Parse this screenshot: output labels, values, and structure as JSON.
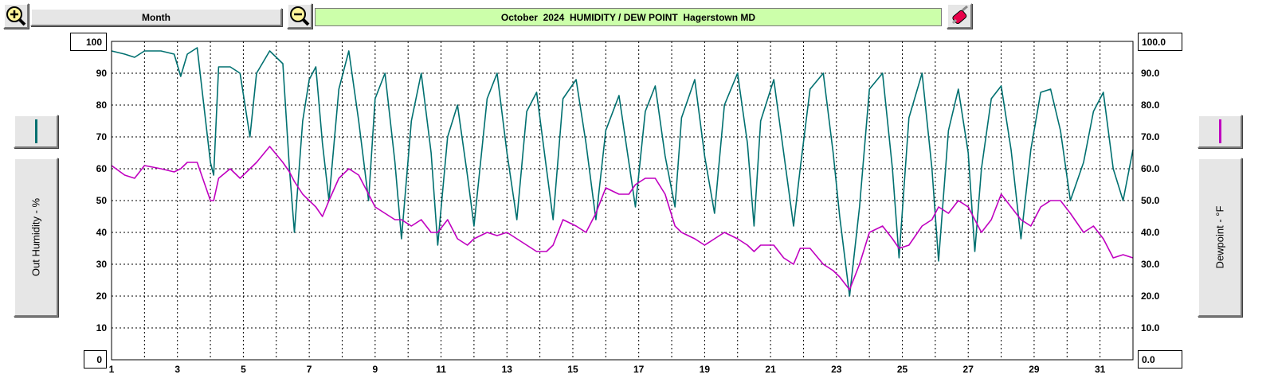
{
  "toolbar": {
    "zoom_in_icon": "zoom-in-icon",
    "zoom_out_icon": "zoom-out-icon",
    "period_label": "Month",
    "settings_icon": "paint-brush-icon"
  },
  "title": "October  2024  HUMIDITY / DEW POINT  Hagerstown MD",
  "left_axis": {
    "label": "Out Humidity - %",
    "top_value": "100",
    "bottom_value": "0",
    "color": "#007070"
  },
  "right_axis": {
    "label": "Dewpoint - °F",
    "top_value": "100.0",
    "bottom_value": "0.0",
    "color": "#c000c0"
  },
  "chart_data": {
    "type": "line",
    "title": "October  2024  HUMIDITY / DEW POINT  Hagerstown MD",
    "xlabel": "",
    "ylabel_left": "Out Humidity - %",
    "ylabel_right": "Dewpoint - °F",
    "xlim": [
      1,
      32
    ],
    "ylim_left": [
      0,
      100
    ],
    "ylim_right": [
      0,
      100
    ],
    "x_ticks": [
      1,
      3,
      5,
      7,
      9,
      11,
      13,
      15,
      17,
      19,
      21,
      23,
      25,
      27,
      29,
      31
    ],
    "y_ticks_left": [
      10,
      20,
      30,
      40,
      50,
      60,
      70,
      80,
      90
    ],
    "y_ticks_right": [
      "10.0",
      "20.0",
      "30.0",
      "40.0",
      "50.0",
      "60.0",
      "70.0",
      "80.0",
      "90.0"
    ],
    "grid": true,
    "series": [
      {
        "axis": "left",
        "color": "#007070",
        "points": [
          [
            1.0,
            97
          ],
          [
            1.4,
            96
          ],
          [
            1.7,
            95
          ],
          [
            2.0,
            97
          ],
          [
            2.5,
            97
          ],
          [
            2.9,
            96
          ],
          [
            3.1,
            89
          ],
          [
            3.3,
            96
          ],
          [
            3.6,
            98
          ],
          [
            3.8,
            80
          ],
          [
            4.0,
            62
          ],
          [
            4.1,
            58
          ],
          [
            4.25,
            92
          ],
          [
            4.6,
            92
          ],
          [
            4.9,
            90
          ],
          [
            5.2,
            70
          ],
          [
            5.4,
            90
          ],
          [
            5.8,
            97
          ],
          [
            6.2,
            93
          ],
          [
            6.4,
            60
          ],
          [
            6.55,
            40
          ],
          [
            6.8,
            75
          ],
          [
            7.0,
            88
          ],
          [
            7.2,
            92
          ],
          [
            7.4,
            68
          ],
          [
            7.6,
            50
          ],
          [
            7.9,
            85
          ],
          [
            8.2,
            97
          ],
          [
            8.5,
            75
          ],
          [
            8.8,
            50
          ],
          [
            9.0,
            82
          ],
          [
            9.3,
            90
          ],
          [
            9.6,
            62
          ],
          [
            9.8,
            38
          ],
          [
            10.1,
            75
          ],
          [
            10.4,
            90
          ],
          [
            10.7,
            65
          ],
          [
            10.9,
            36
          ],
          [
            11.2,
            70
          ],
          [
            11.5,
            80
          ],
          [
            11.8,
            58
          ],
          [
            12.0,
            42
          ],
          [
            12.4,
            82
          ],
          [
            12.7,
            90
          ],
          [
            13.0,
            65
          ],
          [
            13.3,
            44
          ],
          [
            13.6,
            78
          ],
          [
            13.9,
            84
          ],
          [
            14.2,
            60
          ],
          [
            14.4,
            44
          ],
          [
            14.7,
            82
          ],
          [
            15.1,
            88
          ],
          [
            15.4,
            68
          ],
          [
            15.7,
            44
          ],
          [
            16.0,
            72
          ],
          [
            16.4,
            83
          ],
          [
            16.7,
            62
          ],
          [
            16.9,
            48
          ],
          [
            17.2,
            78
          ],
          [
            17.5,
            86
          ],
          [
            17.8,
            64
          ],
          [
            18.1,
            48
          ],
          [
            18.3,
            76
          ],
          [
            18.7,
            88
          ],
          [
            19.0,
            64
          ],
          [
            19.3,
            46
          ],
          [
            19.6,
            80
          ],
          [
            20.0,
            90
          ],
          [
            20.3,
            68
          ],
          [
            20.5,
            42
          ],
          [
            20.7,
            75
          ],
          [
            21.1,
            88
          ],
          [
            21.4,
            65
          ],
          [
            21.7,
            42
          ],
          [
            21.9,
            60
          ],
          [
            22.2,
            85
          ],
          [
            22.6,
            90
          ],
          [
            22.9,
            65
          ],
          [
            23.1,
            45
          ],
          [
            23.4,
            20
          ],
          [
            23.7,
            48
          ],
          [
            24.0,
            85
          ],
          [
            24.4,
            90
          ],
          [
            24.7,
            60
          ],
          [
            24.9,
            32
          ],
          [
            25.2,
            76
          ],
          [
            25.6,
            90
          ],
          [
            25.9,
            60
          ],
          [
            26.1,
            31
          ],
          [
            26.4,
            72
          ],
          [
            26.7,
            85
          ],
          [
            27.0,
            65
          ],
          [
            27.2,
            34
          ],
          [
            27.4,
            60
          ],
          [
            27.7,
            82
          ],
          [
            28.0,
            86
          ],
          [
            28.3,
            66
          ],
          [
            28.6,
            38
          ],
          [
            28.9,
            66
          ],
          [
            29.2,
            84
          ],
          [
            29.5,
            85
          ],
          [
            29.8,
            72
          ],
          [
            30.1,
            50
          ],
          [
            30.5,
            62
          ],
          [
            30.8,
            78
          ],
          [
            31.1,
            84
          ],
          [
            31.4,
            60
          ],
          [
            31.7,
            50
          ],
          [
            32.0,
            66
          ]
        ]
      },
      {
        "axis": "right",
        "color": "#c000c0",
        "points": [
          [
            1.0,
            61
          ],
          [
            1.4,
            58
          ],
          [
            1.7,
            57
          ],
          [
            2.0,
            61
          ],
          [
            2.5,
            60
          ],
          [
            2.9,
            59
          ],
          [
            3.1,
            60
          ],
          [
            3.3,
            62
          ],
          [
            3.6,
            62
          ],
          [
            3.8,
            56
          ],
          [
            4.0,
            50
          ],
          [
            4.1,
            50
          ],
          [
            4.25,
            57
          ],
          [
            4.6,
            60
          ],
          [
            4.9,
            57
          ],
          [
            5.2,
            60
          ],
          [
            5.4,
            62
          ],
          [
            5.8,
            67
          ],
          [
            6.2,
            62
          ],
          [
            6.4,
            59
          ],
          [
            6.55,
            56
          ],
          [
            6.8,
            52
          ],
          [
            7.0,
            50
          ],
          [
            7.2,
            48
          ],
          [
            7.4,
            45
          ],
          [
            7.6,
            50
          ],
          [
            7.9,
            57
          ],
          [
            8.2,
            60
          ],
          [
            8.5,
            58
          ],
          [
            8.8,
            52
          ],
          [
            9.0,
            48
          ],
          [
            9.3,
            46
          ],
          [
            9.6,
            44
          ],
          [
            9.8,
            44
          ],
          [
            10.1,
            42
          ],
          [
            10.4,
            44
          ],
          [
            10.7,
            40
          ],
          [
            10.9,
            40
          ],
          [
            11.2,
            44
          ],
          [
            11.5,
            38
          ],
          [
            11.8,
            36
          ],
          [
            12.0,
            38
          ],
          [
            12.4,
            40
          ],
          [
            12.7,
            39
          ],
          [
            13.0,
            40
          ],
          [
            13.3,
            38
          ],
          [
            13.6,
            36
          ],
          [
            13.9,
            34
          ],
          [
            14.2,
            34
          ],
          [
            14.4,
            36
          ],
          [
            14.7,
            44
          ],
          [
            15.1,
            42
          ],
          [
            15.4,
            40
          ],
          [
            15.7,
            46
          ],
          [
            16.0,
            54
          ],
          [
            16.4,
            52
          ],
          [
            16.7,
            52
          ],
          [
            16.9,
            55
          ],
          [
            17.2,
            57
          ],
          [
            17.5,
            57
          ],
          [
            17.8,
            52
          ],
          [
            18.1,
            42
          ],
          [
            18.3,
            40
          ],
          [
            18.7,
            38
          ],
          [
            19.0,
            36
          ],
          [
            19.3,
            38
          ],
          [
            19.6,
            40
          ],
          [
            20.0,
            38
          ],
          [
            20.3,
            36
          ],
          [
            20.5,
            34
          ],
          [
            20.7,
            36
          ],
          [
            21.1,
            36
          ],
          [
            21.4,
            32
          ],
          [
            21.7,
            30
          ],
          [
            21.9,
            35
          ],
          [
            22.2,
            35
          ],
          [
            22.6,
            30
          ],
          [
            22.9,
            28
          ],
          [
            23.1,
            26
          ],
          [
            23.4,
            22
          ],
          [
            23.7,
            30
          ],
          [
            24.0,
            40
          ],
          [
            24.4,
            42
          ],
          [
            24.7,
            38
          ],
          [
            24.9,
            35
          ],
          [
            25.2,
            36
          ],
          [
            25.6,
            42
          ],
          [
            25.9,
            44
          ],
          [
            26.1,
            48
          ],
          [
            26.4,
            46
          ],
          [
            26.7,
            50
          ],
          [
            27.0,
            48
          ],
          [
            27.2,
            44
          ],
          [
            27.4,
            40
          ],
          [
            27.7,
            44
          ],
          [
            28.0,
            52
          ],
          [
            28.3,
            48
          ],
          [
            28.6,
            44
          ],
          [
            28.9,
            42
          ],
          [
            29.2,
            48
          ],
          [
            29.5,
            50
          ],
          [
            29.8,
            50
          ],
          [
            30.1,
            46
          ],
          [
            30.5,
            40
          ],
          [
            30.8,
            42
          ],
          [
            31.1,
            38
          ],
          [
            31.4,
            32
          ],
          [
            31.7,
            33
          ],
          [
            32.0,
            32
          ]
        ]
      }
    ]
  }
}
